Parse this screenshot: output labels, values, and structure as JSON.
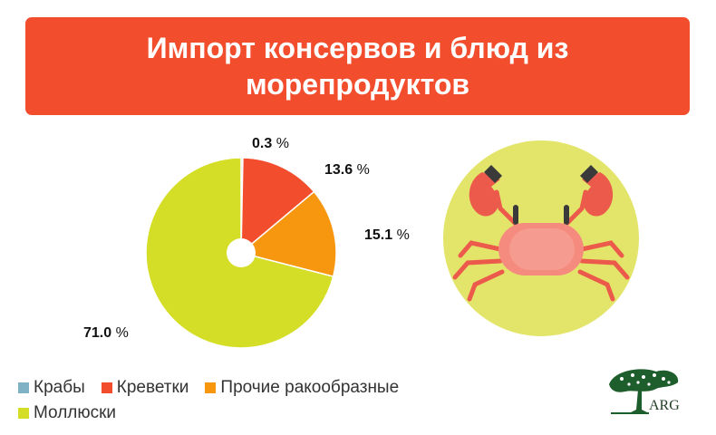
{
  "title": "Импорт консервов и блюд из морепродуктов",
  "chart_data": {
    "type": "pie",
    "categories": [
      "Крабы",
      "Креветки",
      "Прочие ракообразные",
      "Моллюски"
    ],
    "values": [
      0.3,
      13.6,
      15.1,
      71.0
    ],
    "value_labels": [
      "0.3",
      "13.6",
      "15.1",
      "71.0"
    ],
    "unit": "%",
    "colors": [
      "#7fb2c5",
      "#f24e2e",
      "#f7960f",
      "#d5de27"
    ],
    "donut_hole": true,
    "legend_position": "bottom-left"
  },
  "logo": {
    "text": "ARG"
  },
  "illustration": {
    "icon": "crab-icon",
    "background": "#e3e56a"
  }
}
